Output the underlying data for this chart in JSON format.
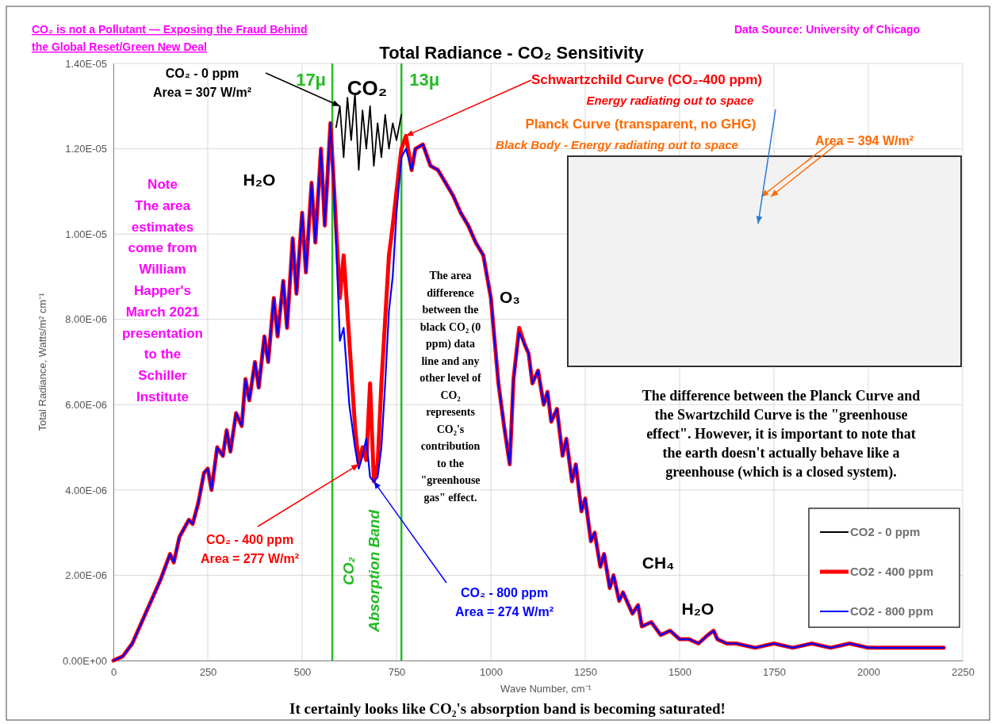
{
  "chart_data": {
    "type": "line",
    "title": "Total Radiance - CO₂ Sensitivity",
    "xlabel": "Wave Number, cm⁻¹",
    "ylabel": "Total Radiance, Watts/m² cm⁻¹",
    "xlim": [
      0,
      2250
    ],
    "xticks": [
      0,
      250,
      500,
      750,
      1000,
      1250,
      1500,
      1750,
      2000,
      2250
    ],
    "ylim": [
      0,
      1.4e-05
    ],
    "yticks": [
      {
        "value": 0,
        "label": "0.00E+00"
      },
      {
        "value": 2e-06,
        "label": "2.00E-06"
      },
      {
        "value": 4e-06,
        "label": "4.00E-06"
      },
      {
        "value": 6e-06,
        "label": "6.00E-06"
      },
      {
        "value": 8e-06,
        "label": "8.00E-06"
      },
      {
        "value": 1e-05,
        "label": "1.00E-05"
      },
      {
        "value": 1.2e-05,
        "label": "1.20E-05"
      },
      {
        "value": 1.4e-05,
        "label": "1.40E-05"
      }
    ],
    "grid": true,
    "legend": "bottom right",
    "x": [
      0,
      25,
      50,
      75,
      100,
      125,
      150,
      160,
      175,
      200,
      210,
      225,
      240,
      250,
      260,
      275,
      290,
      300,
      310,
      325,
      340,
      350,
      360,
      375,
      385,
      400,
      410,
      425,
      435,
      450,
      460,
      475,
      485,
      500,
      510,
      525,
      535,
      550,
      560,
      575,
      585,
      600,
      610,
      625,
      640,
      650,
      660,
      670,
      680,
      690,
      700,
      710,
      720,
      730,
      740,
      750,
      763,
      775,
      790,
      800,
      820,
      840,
      860,
      880,
      900,
      920,
      940,
      960,
      980,
      1000,
      1010,
      1020,
      1035,
      1050,
      1060,
      1075,
      1090,
      1100,
      1110,
      1125,
      1140,
      1150,
      1160,
      1175,
      1190,
      1200,
      1215,
      1225,
      1240,
      1250,
      1265,
      1275,
      1290,
      1300,
      1315,
      1325,
      1340,
      1350,
      1375,
      1390,
      1400,
      1425,
      1450,
      1475,
      1500,
      1525,
      1550,
      1575,
      1590,
      1600,
      1625,
      1650,
      1700,
      1750,
      1800,
      1850,
      1900,
      1950,
      2000,
      2050,
      2100,
      2150,
      2200
    ],
    "series": [
      {
        "name": "CO2 - 0 ppm",
        "color": "#000000",
        "x": [
          590,
          600,
          610,
          620,
          630,
          640,
          650,
          660,
          670,
          680,
          690,
          700,
          710,
          720,
          730,
          740,
          750,
          763
        ],
        "values": [
          1.25e-05,
          1.3e-05,
          1.18e-05,
          1.32e-05,
          1.22e-05,
          1.33e-05,
          1.15e-05,
          1.29e-05,
          1.2e-05,
          1.3e-05,
          1.16e-05,
          1.26e-05,
          1.18e-05,
          1.28e-05,
          1.2e-05,
          1.26e-05,
          1.22e-05,
          1.28e-05
        ]
      },
      {
        "name": "CO2 - 400 ppm",
        "color": "#ff0000",
        "values": [
          0,
          1e-07,
          4e-07,
          9e-07,
          1.4e-06,
          1.9e-06,
          2.5e-06,
          2.3e-06,
          2.9e-06,
          3.3e-06,
          3.2e-06,
          3.7e-06,
          4.4e-06,
          4.5e-06,
          4e-06,
          5e-06,
          4.8e-06,
          5.4e-06,
          4.9e-06,
          5.8e-06,
          5.5e-06,
          6.6e-06,
          6.1e-06,
          7e-06,
          6.4e-06,
          7.6e-06,
          7e-06,
          8.5e-06,
          7.6e-06,
          8.9e-06,
          7.8e-06,
          9.9e-06,
          8.6e-06,
          1.05e-05,
          9.1e-06,
          1.12e-05,
          9.8e-06,
          1.2e-05,
          1.02e-05,
          1.26e-05,
          1.1e-05,
          8.5e-06,
          9.5e-06,
          7.5e-06,
          5.5e-06,
          4.6e-06,
          5e-06,
          4.7e-06,
          6.5e-06,
          4.2e-06,
          4.6e-06,
          6.5e-06,
          8e-06,
          9.5e-06,
          1.02e-05,
          1.1e-05,
          1.2e-05,
          1.23e-05,
          1.15e-05,
          1.2e-05,
          1.21e-05,
          1.16e-05,
          1.15e-05,
          1.12e-05,
          1.09e-05,
          1.05e-05,
          1.02e-05,
          9.8e-06,
          9.5e-06,
          8.5e-06,
          7.5e-06,
          6.5e-06,
          5.5e-06,
          4.6e-06,
          6.6e-06,
          7.8e-06,
          7.4e-06,
          7.2e-06,
          6.5e-06,
          6.8e-06,
          6e-06,
          6.3e-06,
          5.6e-06,
          5.9e-06,
          4.8e-06,
          5.2e-06,
          4.2e-06,
          4.6e-06,
          3.5e-06,
          3.8e-06,
          2.8e-06,
          3e-06,
          2.2e-06,
          2.5e-06,
          1.7e-06,
          2e-06,
          1.4e-06,
          1.6e-06,
          1.1e-06,
          1.3e-06,
          8e-07,
          9e-07,
          6e-07,
          7e-07,
          5e-07,
          5e-07,
          4e-07,
          6e-07,
          7e-07,
          5e-07,
          4e-07,
          4e-07,
          3e-07,
          4e-07,
          3e-07,
          4e-07,
          3e-07,
          4e-07,
          3e-07,
          3e-07,
          3e-07,
          3e-07,
          3e-07
        ]
      },
      {
        "name": "CO2 - 800 ppm",
        "color": "#0000ff",
        "values": [
          0,
          1e-07,
          4e-07,
          9e-07,
          1.4e-06,
          1.9e-06,
          2.5e-06,
          2.3e-06,
          2.9e-06,
          3.3e-06,
          3.2e-06,
          3.7e-06,
          4.4e-06,
          4.5e-06,
          4e-06,
          5e-06,
          4.8e-06,
          5.4e-06,
          4.9e-06,
          5.8e-06,
          5.5e-06,
          6.6e-06,
          6.1e-06,
          7e-06,
          6.4e-06,
          7.6e-06,
          7e-06,
          8.5e-06,
          7.6e-06,
          8.9e-06,
          7.8e-06,
          9.9e-06,
          8.6e-06,
          1.05e-05,
          9.1e-06,
          1.12e-05,
          9.8e-06,
          1.2e-05,
          1.02e-05,
          1.26e-05,
          1.1e-05,
          7.5e-06,
          7.8e-06,
          6e-06,
          5e-06,
          4.5e-06,
          4.8e-06,
          5.2e-06,
          4.3e-06,
          4.2e-06,
          4.3e-06,
          5e-06,
          6.5e-06,
          8.2e-06,
          9e-06,
          1.05e-05,
          1.18e-05,
          1.2e-05,
          1.15e-05,
          1.2e-05,
          1.21e-05,
          1.16e-05,
          1.15e-05,
          1.12e-05,
          1.09e-05,
          1.05e-05,
          1.02e-05,
          9.8e-06,
          9.5e-06,
          8.5e-06,
          7.5e-06,
          6.5e-06,
          5.5e-06,
          4.6e-06,
          6.6e-06,
          7.7e-06,
          7.4e-06,
          7.2e-06,
          6.5e-06,
          6.8e-06,
          6e-06,
          6.3e-06,
          5.6e-06,
          5.9e-06,
          4.8e-06,
          5.2e-06,
          4.2e-06,
          4.6e-06,
          3.5e-06,
          3.8e-06,
          2.8e-06,
          3e-06,
          2.2e-06,
          2.5e-06,
          1.7e-06,
          2e-06,
          1.4e-06,
          1.6e-06,
          1.1e-06,
          1.3e-06,
          8e-07,
          9e-07,
          6e-07,
          7e-07,
          5e-07,
          5e-07,
          4e-07,
          6e-07,
          7e-07,
          5e-07,
          4e-07,
          4e-07,
          3e-07,
          4e-07,
          3e-07,
          4e-07,
          3e-07,
          4e-07,
          3e-07,
          3e-07,
          3e-07,
          3e-07,
          3e-07
        ]
      }
    ],
    "ref_lines": [
      {
        "axis": "x",
        "value": 580,
        "label": "17μ",
        "color": "#22bb22"
      },
      {
        "axis": "x",
        "value": 763,
        "label": "13μ",
        "color": "#22bb22"
      }
    ],
    "annotations": [
      "CO₂ is not a Pollutant — Exposing the Fraud Behind\nthe Global Reset/Green New Deal",
      "Data Source: University of Chicago",
      {
        "text": "CO₂ - 0 ppm\nArea = 307 W/m²",
        "x": 600,
        "y": 1.3e-05
      },
      {
        "text": "CO₂ - 400 ppm\nArea = 277 W/m²",
        "x": 650,
        "y": 4.6e-06
      },
      {
        "text": "CO₂ - 800 ppm\nArea = 274 W/m²",
        "x": 690,
        "y": 4.2e-06
      },
      {
        "text": "Schwartzchild Curve (CO₂-400 ppm)",
        "x": 775,
        "y": 1.23e-05
      },
      "Energy radiating out to space",
      "Planck Curve (transparent, no GHG)",
      "Black Body - Energy radiating out to space",
      "Area = 394 W/m²",
      "H₂O",
      "CO₂",
      "O₃",
      "CH₄",
      "H₂O",
      "Note\nThe area\nestimates\ncome from\nWilliam\nHapper's\nMarch 2021\npresentation\nto the\nSchiller\nInstitute",
      "The area\ndifference\nbetween the\nblack CO₂ (0\nppm) data\nline  and any\nother level of\nCO₂\nrepresents\nCO₂'s\ncontribution\nto the\n\"greenhouse\ngas\" effect.",
      "The difference between the Planck Curve and\nthe Swartzchild Curve is the \"greenhouse\neffect\". However, it is important to note that\nthe earth doesn't actually behave like a\ngreenhouse (which is a closed system).",
      "CO₂\nAbsorption Band",
      "It certainly looks like CO₂'s absorption band is becoming saturated!"
    ]
  }
}
